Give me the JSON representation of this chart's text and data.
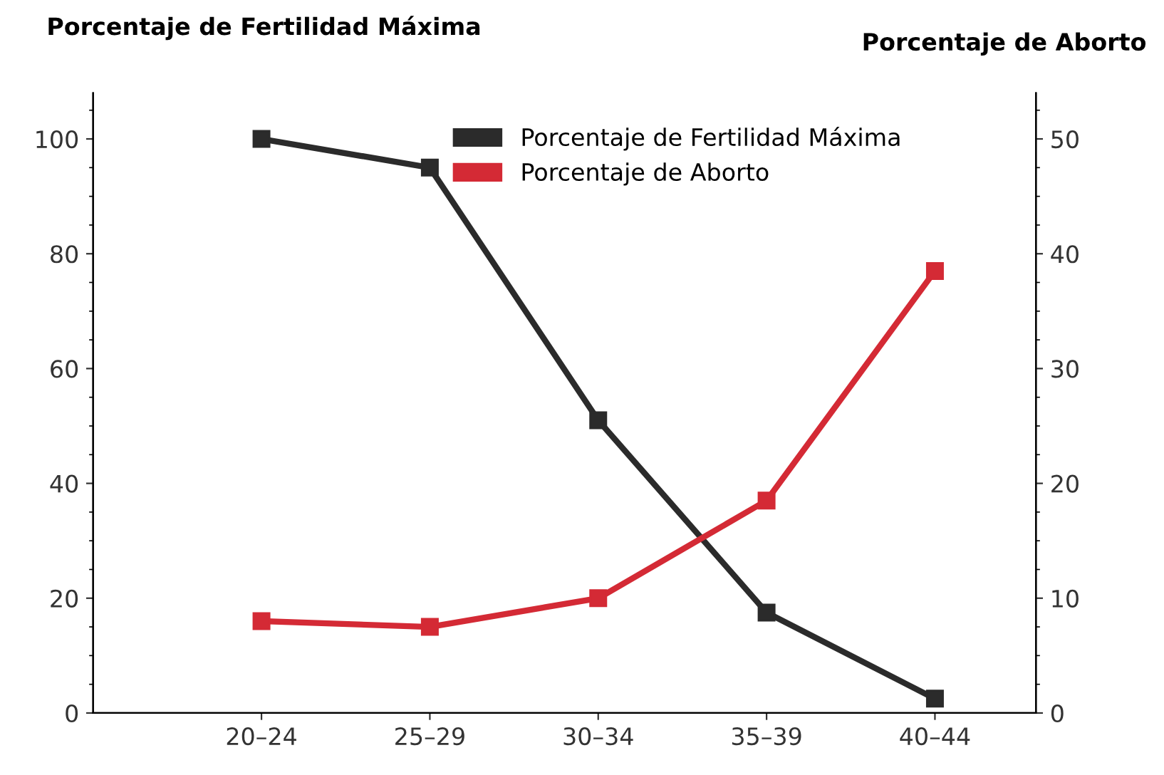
{
  "chart_data": {
    "type": "line",
    "ylabel": "Porcentaje de Fertilidad Máxima",
    "y2label": "Porcentaje de Aborto",
    "categories": [
      "20–24",
      "25–29",
      "30–34",
      "35–39",
      "40–44"
    ],
    "series": [
      {
        "name": "Porcentaje de Fertilidad Máxima",
        "color": "#2b2b2b",
        "values": [
          100,
          95,
          51,
          17.5,
          2.5
        ]
      },
      {
        "name": "Porcentaje de Aborto",
        "color": "#d42a35",
        "axis": "y2",
        "values": [
          8,
          7.5,
          10,
          18.5,
          38.5
        ]
      }
    ],
    "ylim": [
      0,
      108
    ],
    "yticks": [
      0,
      20,
      40,
      60,
      80,
      100
    ],
    "y2lim": [
      0,
      54
    ],
    "y2ticks": [
      0,
      10,
      20,
      30,
      40,
      50
    ],
    "marker": "square",
    "line_style": "solid",
    "grid": false,
    "legend": "top"
  }
}
